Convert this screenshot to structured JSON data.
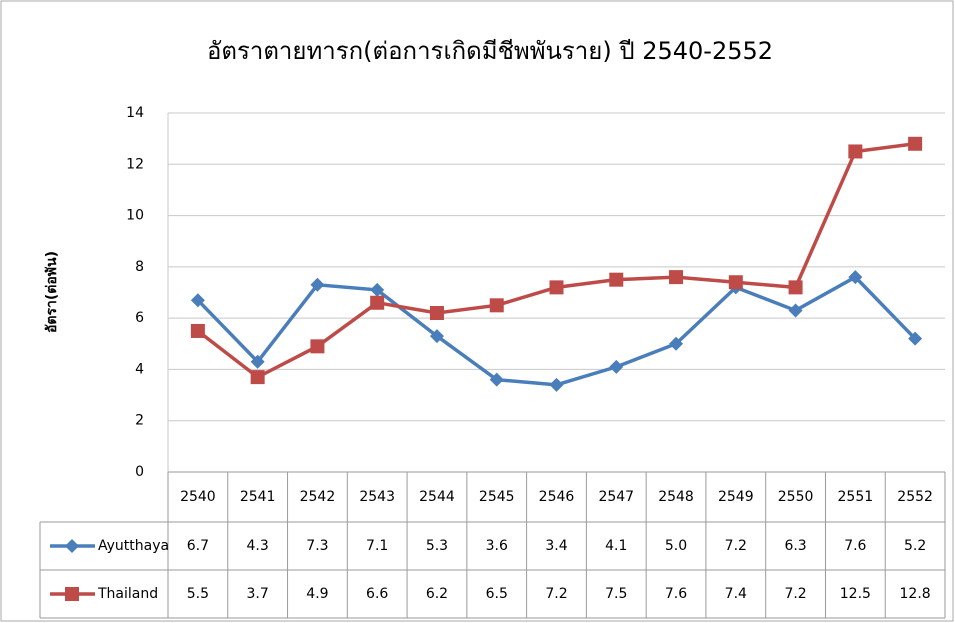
{
  "chart_data": {
    "type": "line",
    "title": "อัตราตายทารก(ต่อการเกิดมีชีพพันราย) ปี 2540-2552",
    "y_label": "อัตรา(ต่อพัน)",
    "categories": [
      "2540",
      "2541",
      "2542",
      "2543",
      "2544",
      "2545",
      "2546",
      "2547",
      "2548",
      "2549",
      "2550",
      "2551",
      "2552"
    ],
    "series": [
      {
        "name": "Ayutthaya",
        "color": "#4a7ebb",
        "marker": "diamond",
        "values": [
          6.7,
          4.3,
          7.3,
          7.1,
          5.3,
          3.6,
          3.4,
          4.1,
          5.0,
          7.2,
          6.3,
          7.6,
          5.2
        ],
        "value_labels": [
          "6.7",
          "4.3",
          "7.3",
          "7.1",
          "5.3",
          "3.6",
          "3.4",
          "4.1",
          "5.0",
          "7.2",
          "6.3",
          "7.6",
          "5.2"
        ]
      },
      {
        "name": "Thailand",
        "color": "#be4b48",
        "marker": "square",
        "values": [
          5.5,
          3.7,
          4.9,
          6.6,
          6.2,
          6.5,
          7.2,
          7.5,
          7.6,
          7.4,
          7.2,
          12.5,
          12.8
        ]
      }
    ],
    "ylim": [
      0,
      14
    ],
    "yticks": [
      0,
      2,
      4,
      6,
      8,
      10,
      12,
      14
    ],
    "grid": true
  }
}
